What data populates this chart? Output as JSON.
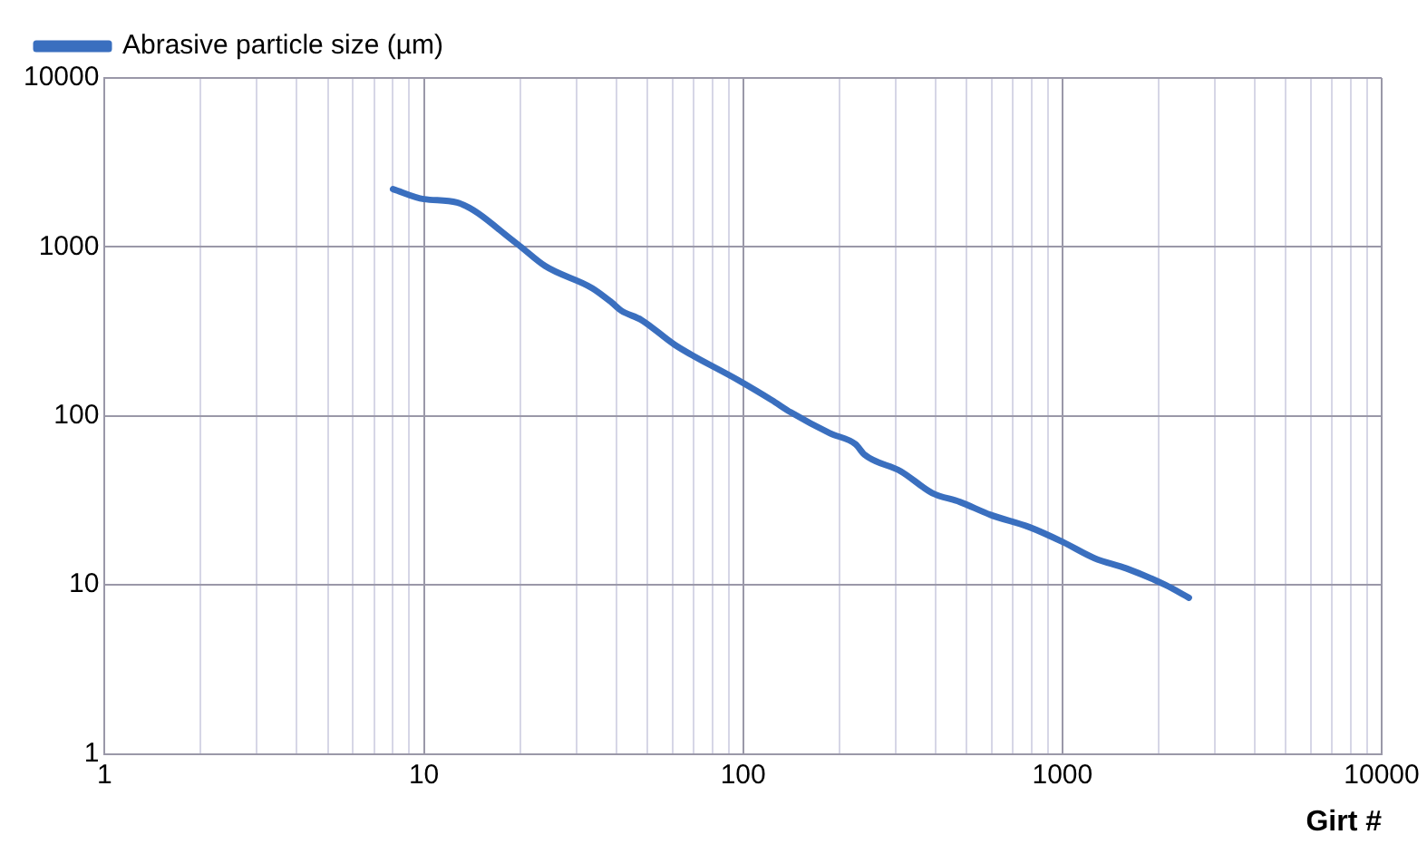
{
  "chart_data": {
    "type": "line",
    "xlabel": "Girt #",
    "log": "xy",
    "xlim": [
      1,
      10000
    ],
    "ylim": [
      1,
      10000
    ],
    "xticks": [
      1,
      {
        "value": 2,
        "label": null
      },
      {
        "value": 3,
        "label": null
      },
      {
        "value": 4,
        "label": null
      },
      {
        "value": 5,
        "label": null
      },
      {
        "value": 6,
        "label": null
      },
      {
        "value": 7,
        "label": null
      },
      {
        "value": 8,
        "label": null
      },
      {
        "value": 9,
        "label": null
      },
      10,
      {
        "value": 20,
        "label": null
      },
      {
        "value": 30,
        "label": null
      },
      {
        "value": 40,
        "label": null
      },
      {
        "value": 50,
        "label": null
      },
      {
        "value": 60,
        "label": null
      },
      {
        "value": 70,
        "label": null
      },
      {
        "value": 80,
        "label": null
      },
      {
        "value": 90,
        "label": null
      },
      100,
      {
        "value": 200,
        "label": null
      },
      {
        "value": 300,
        "label": null
      },
      {
        "value": 400,
        "label": null
      },
      {
        "value": 500,
        "label": null
      },
      {
        "value": 600,
        "label": null
      },
      {
        "value": 700,
        "label": null
      },
      {
        "value": 800,
        "label": null
      },
      {
        "value": 900,
        "label": null
      },
      1000,
      {
        "value": 2000,
        "label": null
      },
      {
        "value": 3000,
        "label": null
      },
      {
        "value": 4000,
        "label": null
      },
      {
        "value": 5000,
        "label": null
      },
      {
        "value": 6000,
        "label": null
      },
      {
        "value": 7000,
        "label": null
      },
      {
        "value": 8000,
        "label": null
      },
      {
        "value": 9000,
        "label": null
      },
      10000
    ],
    "yticks": [
      1,
      10,
      100,
      1000,
      10000
    ],
    "grid": true,
    "legend": "top left",
    "marker": "none",
    "line_style": "solid",
    "x": [
      8,
      10,
      12.7,
      19.5,
      24,
      33.7,
      38.7,
      41.5,
      48,
      61,
      97,
      123,
      141,
      187,
      225,
      240,
      312,
      391,
      477,
      595,
      787,
      1000,
      1260,
      1590,
      2100,
      2490
    ],
    "series": [
      {
        "name": "Abrasive particle size (µm)",
        "color": "#3a6fbf",
        "values": [
          2200,
          1920,
          1830,
          1050,
          770,
          570,
          470,
          420,
          370,
          264,
          162,
          124,
          105,
          79,
          68,
          59,
          47,
          35,
          31,
          26,
          22,
          18,
          14.4,
          12.5,
          10,
          8.4
        ]
      }
    ]
  }
}
